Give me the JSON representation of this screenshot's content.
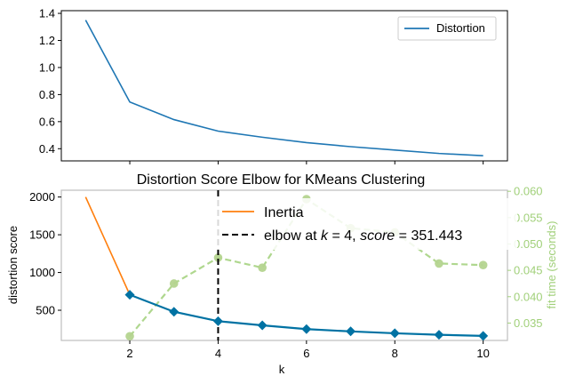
{
  "colors": {
    "distortion": "#1f77b4",
    "inertia": "#ff7f0e",
    "elbow": "#000000",
    "yb_distortion": "#0072a3",
    "fit_time": "#a1d07a",
    "fit_time_point": "#b4d48f"
  },
  "chart_data": [
    {
      "type": "line",
      "title": "",
      "xlabel": "",
      "ylabel": "",
      "x": [
        1,
        2,
        3,
        4,
        5,
        6,
        7,
        8,
        9,
        10
      ],
      "xlim": [
        0.45,
        10.55
      ],
      "ylim": [
        0.31,
        1.42
      ],
      "y_ticks": [
        "0.4",
        "0.6",
        "0.8",
        "1.0",
        "1.2",
        "1.4"
      ],
      "x_tick_labels_shown": false,
      "legend_position": "top-right",
      "grid": false,
      "series": [
        {
          "name": "Distortion",
          "values": [
            1.35,
            0.745,
            0.615,
            0.53,
            0.485,
            0.445,
            0.415,
            0.39,
            0.365,
            0.348
          ]
        }
      ]
    },
    {
      "type": "line",
      "title": "Distortion Score Elbow for KMeans Clustering",
      "xlabel": "k",
      "ylabel": "distortion score",
      "y2label": "fit time (seconds)",
      "x": [
        1,
        2,
        3,
        4,
        5,
        6,
        7,
        8,
        9,
        10
      ],
      "xlim": [
        0.45,
        10.55
      ],
      "ylim": [
        100,
        2090
      ],
      "y2lim": [
        0.0317,
        0.0602
      ],
      "x_ticks": [
        "2",
        "4",
        "6",
        "8",
        "10"
      ],
      "y_ticks": [
        "500",
        "1000",
        "1500",
        "2000"
      ],
      "y2_ticks": [
        "0.035",
        "0.040",
        "0.045",
        "0.050",
        "0.055",
        "0.060"
      ],
      "legend_position": "top-right",
      "grid": false,
      "legend": [
        {
          "label": "Inertia"
        },
        {
          "label_parts": [
            "elbow at ",
            "k",
            " = 4, ",
            "score",
            " = 351.443"
          ]
        }
      ],
      "series": [
        {
          "name": "Inertia",
          "x": [
            1,
            2
          ],
          "values": [
            2000,
            705
          ]
        },
        {
          "name": "distortion score",
          "x": [
            2,
            3,
            4,
            5,
            6,
            7,
            8,
            9,
            10
          ],
          "values": [
            705,
            480,
            355,
            300,
            250,
            220,
            195,
            175,
            160
          ]
        },
        {
          "name": "fit time",
          "axis": "right",
          "x": [
            2,
            3,
            4,
            5,
            6,
            7,
            8,
            9,
            10
          ],
          "values": [
            0.0325,
            0.0425,
            0.0474,
            0.0455,
            0.0585,
            0.053,
            0.0522,
            0.0463,
            0.046
          ]
        }
      ],
      "elbow": {
        "k": 4
      }
    }
  ]
}
